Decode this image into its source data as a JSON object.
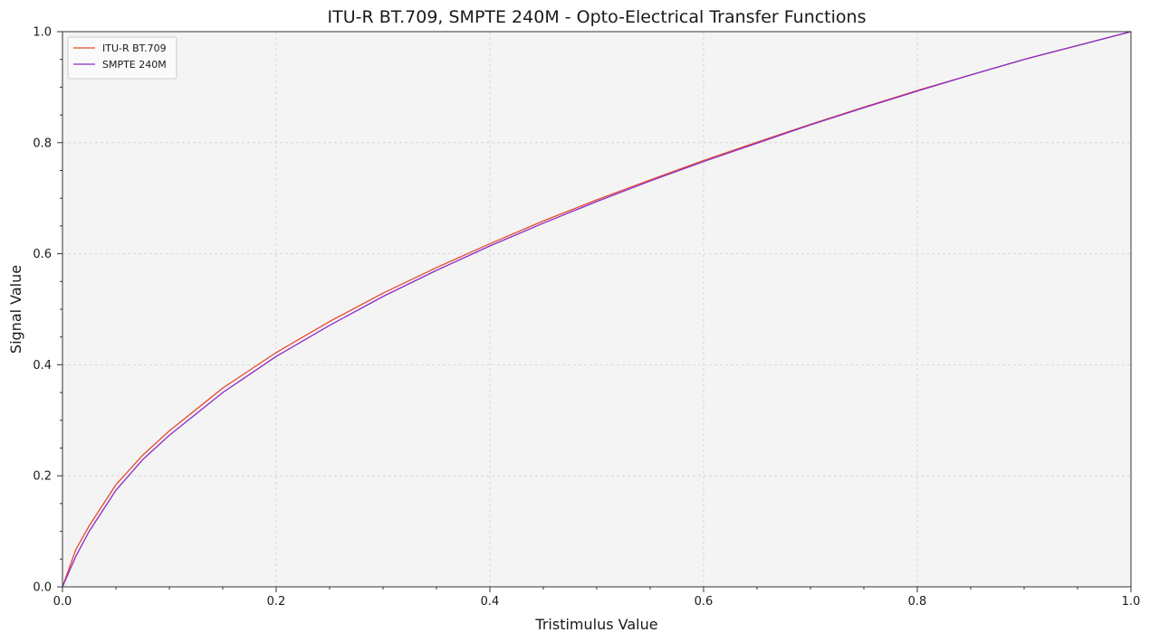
{
  "chart_data": {
    "type": "line",
    "title": "ITU-R BT.709, SMPTE 240M - Opto-Electrical Transfer Functions",
    "xlabel": "Tristimulus Value",
    "ylabel": "Signal Value",
    "xlim": [
      0.0,
      1.0
    ],
    "ylim": [
      0.0,
      1.0
    ],
    "x_ticks": [
      "0.0",
      "0.2",
      "0.4",
      "0.6",
      "0.8",
      "1.0"
    ],
    "y_ticks": [
      "0.0",
      "0.2",
      "0.4",
      "0.6",
      "0.8",
      "1.0"
    ],
    "grid": true,
    "legend_position": "top-left",
    "background": "#f4f4f4",
    "x": [
      0,
      0.0125,
      0.025,
      0.05,
      0.075,
      0.1,
      0.15,
      0.2,
      0.25,
      0.3,
      0.35,
      0.4,
      0.45,
      0.5,
      0.55,
      0.6,
      0.65,
      0.7,
      0.75,
      0.8,
      0.85,
      0.9,
      0.95,
      1.0
    ],
    "series": [
      {
        "name": "ITU-R BT.709",
        "color": "#e8492e",
        "values": [
          0,
          0.067,
          0.11,
          0.184,
          0.237,
          0.281,
          0.358,
          0.422,
          0.478,
          0.529,
          0.575,
          0.618,
          0.659,
          0.697,
          0.733,
          0.768,
          0.801,
          0.833,
          0.864,
          0.894,
          0.922,
          0.95,
          0.975,
          1.0
        ]
      },
      {
        "name": "SMPTE 240M",
        "color": "#8a2bc9",
        "values": [
          0,
          0.055,
          0.1,
          0.174,
          0.229,
          0.273,
          0.35,
          0.415,
          0.471,
          0.523,
          0.57,
          0.614,
          0.655,
          0.694,
          0.731,
          0.766,
          0.799,
          0.832,
          0.863,
          0.893,
          0.922,
          0.95,
          0.975,
          1.0
        ]
      }
    ]
  }
}
